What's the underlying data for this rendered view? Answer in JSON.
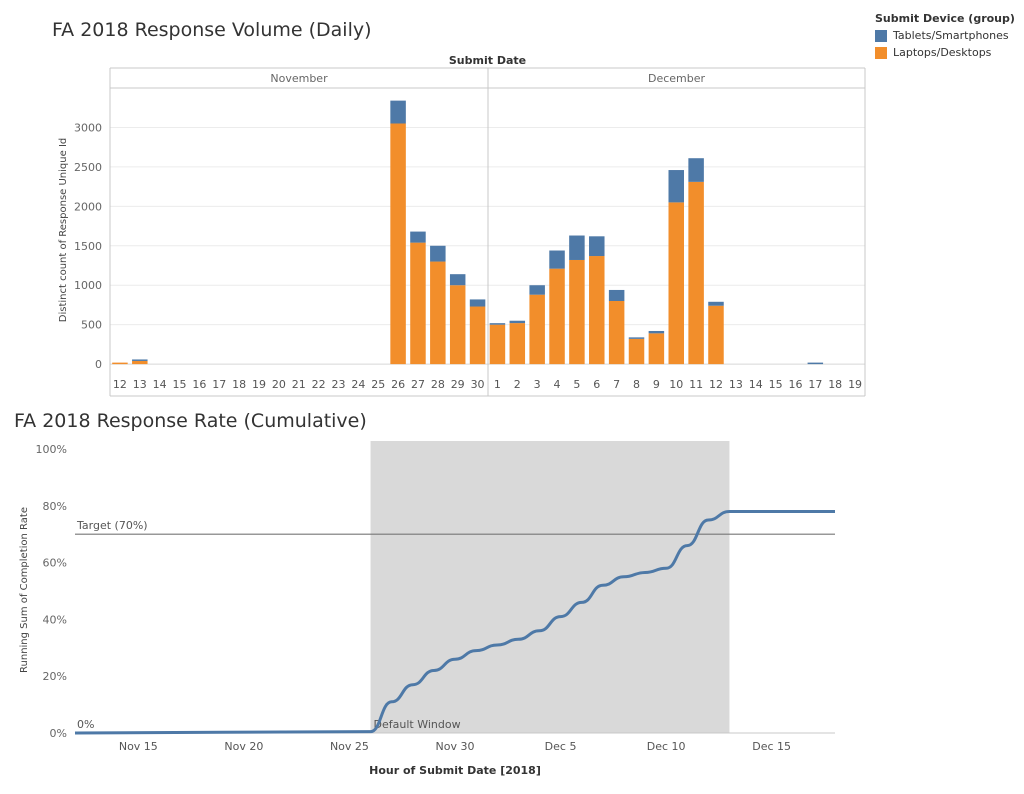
{
  "legend": {
    "title": "Submit Device (group)",
    "items": [
      {
        "label": "Tablets/Smartphones",
        "color": "#4e79a7"
      },
      {
        "label": "Laptops/Desktops",
        "color": "#f28e2b"
      }
    ]
  },
  "chart_data": [
    {
      "type": "bar",
      "stacked": true,
      "title": "FA 2018 Response Volume (Daily)",
      "xlabel": "Submit Date",
      "ylabel": "Distinct count of Response Unique Id",
      "ylim": [
        -100,
        3500
      ],
      "yticks": [
        0,
        500,
        1000,
        1500,
        2000,
        2500,
        3000
      ],
      "grid": true,
      "legend_position": "top-right",
      "groups": [
        {
          "label": "November",
          "categories": [
            "12",
            "13",
            "14",
            "15",
            "16",
            "17",
            "18",
            "19",
            "20",
            "21",
            "22",
            "23",
            "24",
            "25",
            "26",
            "27",
            "28",
            "29",
            "30"
          ]
        },
        {
          "label": "December",
          "categories": [
            "1",
            "2",
            "3",
            "4",
            "5",
            "6",
            "7",
            "8",
            "9",
            "10",
            "11",
            "12",
            "13",
            "14",
            "15",
            "16",
            "17",
            "18",
            "19"
          ]
        }
      ],
      "series": [
        {
          "name": "Laptops/Desktops",
          "color": "#f28e2b",
          "values": [
            5,
            40,
            0,
            0,
            0,
            0,
            0,
            0,
            0,
            0,
            0,
            0,
            0,
            0,
            3050,
            1540,
            1300,
            1000,
            730,
            500,
            520,
            880,
            1210,
            1320,
            1370,
            800,
            320,
            390,
            2050,
            2310,
            740,
            0,
            0,
            0,
            0,
            0,
            0,
            0
          ]
        },
        {
          "name": "Tablets/Smartphones",
          "color": "#4e79a7",
          "values": [
            0,
            10,
            0,
            0,
            0,
            0,
            0,
            0,
            0,
            0,
            0,
            0,
            0,
            0,
            290,
            140,
            200,
            140,
            90,
            10,
            30,
            120,
            230,
            310,
            250,
            140,
            10,
            30,
            410,
            300,
            50,
            0,
            0,
            0,
            0,
            15,
            0,
            0
          ]
        }
      ]
    },
    {
      "type": "line",
      "title": "FA 2018 Response Rate (Cumulative)",
      "xlabel": "Hour of Submit Date [2018]",
      "ylabel": "Running Sum of Completion Rate",
      "x_ticks": [
        "Nov 15",
        "Nov 20",
        "Nov 25",
        "Nov 30",
        "Dec 5",
        "Dec 10",
        "Dec 15"
      ],
      "y_ticks": [
        "0%",
        "20%",
        "40%",
        "60%",
        "80%",
        "100%"
      ],
      "ylim": [
        0,
        100
      ],
      "xlim": [
        "2018-11-12",
        "2018-12-18"
      ],
      "target": {
        "label": "Target (70%)",
        "value": 70
      },
      "zero_label": "0%",
      "window": {
        "label": "Default Window",
        "start": "2018-11-26",
        "end": "2018-12-13"
      },
      "series": [
        {
          "name": "",
          "color": "#4e79a7",
          "x": [
            "2018-11-12",
            "2018-11-26",
            "2018-11-27",
            "2018-11-28",
            "2018-11-29",
            "2018-11-30",
            "2018-12-01",
            "2018-12-02",
            "2018-12-03",
            "2018-12-04",
            "2018-12-05",
            "2018-12-06",
            "2018-12-07",
            "2018-12-08",
            "2018-12-09",
            "2018-12-10",
            "2018-12-11",
            "2018-12-12",
            "2018-12-13",
            "2018-12-18"
          ],
          "y": [
            0,
            0.5,
            11,
            17,
            22,
            26,
            29,
            31,
            33,
            36,
            41,
            46,
            52,
            55,
            56.5,
            58,
            66,
            75,
            78,
            78
          ]
        }
      ]
    }
  ]
}
